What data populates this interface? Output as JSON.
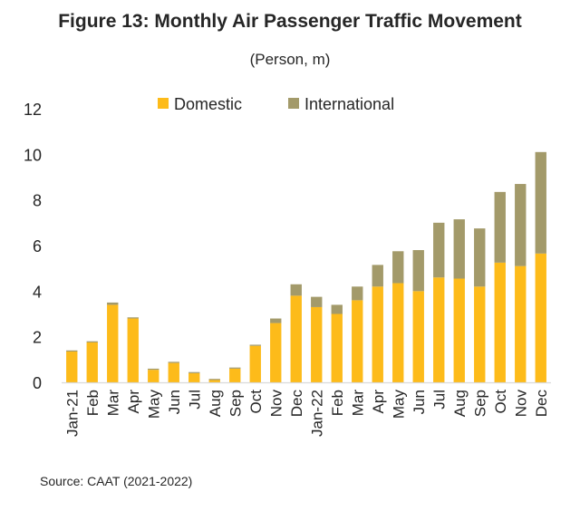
{
  "title": "Figure 13: Monthly Air Passenger Traffic Movement",
  "subtitle": "(Person, m)",
  "source": "Source: CAAT (2021-2022)",
  "colors": {
    "domestic": "#FDBB1A",
    "international": "#A39A6A",
    "axis": "#D9D9D9",
    "text": "#262626"
  },
  "chart_data": {
    "type": "bar",
    "stacked": true,
    "categories": [
      "Jan-21",
      "Feb",
      "Mar",
      "Apr",
      "May",
      "Jun",
      "Jul",
      "Aug",
      "Sep",
      "Oct",
      "Nov",
      "Dec",
      "Jan-22",
      "Feb",
      "Mar",
      "Apr",
      "May",
      "Jun",
      "Jul",
      "Aug",
      "Sep",
      "Oct",
      "Nov",
      "Dec"
    ],
    "series": [
      {
        "name": "Domestic",
        "values": [
          1.35,
          1.75,
          3.4,
          2.8,
          0.55,
          0.85,
          0.4,
          0.1,
          0.6,
          1.6,
          2.6,
          3.8,
          3.3,
          3.0,
          3.6,
          4.2,
          4.35,
          4.0,
          4.6,
          4.55,
          4.2,
          5.25,
          5.1,
          5.65
        ]
      },
      {
        "name": "International",
        "values": [
          0.05,
          0.05,
          0.1,
          0.05,
          0.05,
          0.05,
          0.05,
          0.05,
          0.05,
          0.05,
          0.2,
          0.5,
          0.45,
          0.4,
          0.6,
          0.95,
          1.4,
          1.8,
          2.4,
          2.6,
          2.55,
          3.1,
          3.6,
          4.45
        ]
      }
    ],
    "yticks": [
      "0",
      "2",
      "4",
      "6",
      "8",
      "10",
      "12"
    ],
    "ylim": [
      0,
      12
    ],
    "legend": "top"
  }
}
